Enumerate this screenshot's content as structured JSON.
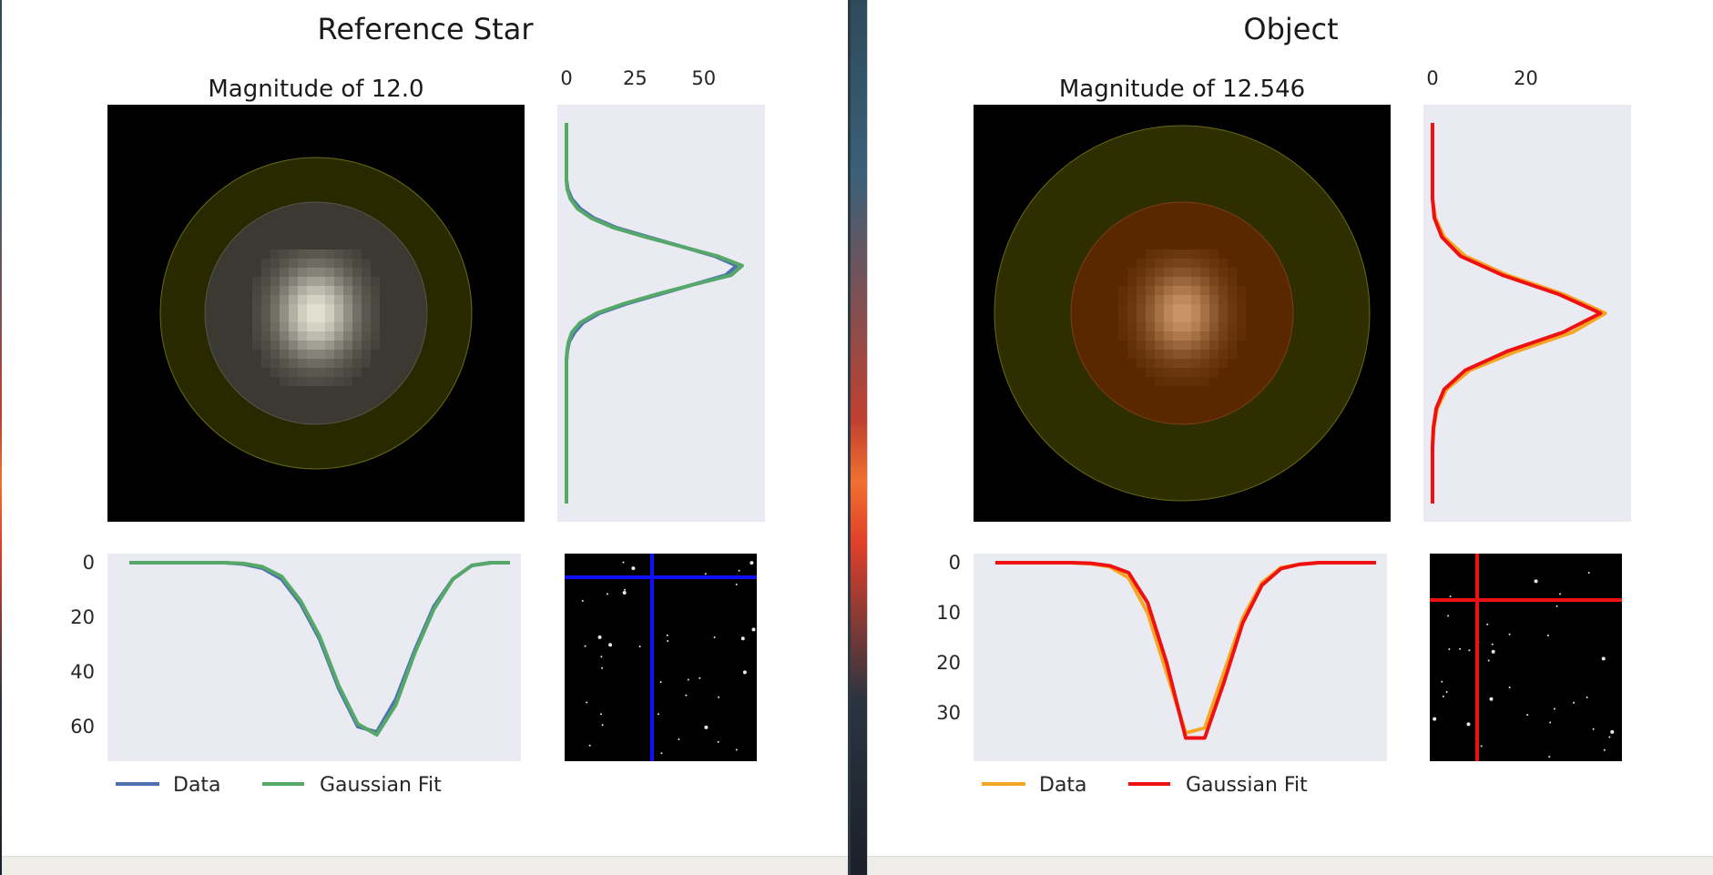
{
  "left": {
    "title": "Reference Star",
    "subtitle": "Magnitude of 12.0",
    "colors": {
      "data": "#4c72b0",
      "fit": "#55a868",
      "crosshair": "#1010ff"
    },
    "side_profile": {
      "x_ticks": [
        "0",
        "25",
        "50"
      ],
      "x_values": [
        0,
        25,
        50
      ],
      "x_max": 68
    },
    "bottom_profile": {
      "y_ticks": [
        "0",
        "20",
        "40",
        "60"
      ],
      "y_values": [
        0,
        20,
        40,
        60
      ],
      "y_max": 66
    },
    "legend": {
      "data_label": "Data",
      "fit_label": "Gaussian Fit"
    }
  },
  "right": {
    "title": "Object",
    "subtitle": "Magnitude of 12.546",
    "colors": {
      "data": "#f5a623",
      "fit": "#ee1111",
      "crosshair": "#ee1111"
    },
    "side_profile": {
      "x_ticks": [
        "0",
        "20"
      ],
      "x_values": [
        0,
        20
      ],
      "x_max": 40
    },
    "bottom_profile": {
      "y_ticks": [
        "0",
        "10",
        "20",
        "30"
      ],
      "y_values": [
        0,
        10,
        20,
        30
      ],
      "y_max": 36
    },
    "legend": {
      "data_label": "Data",
      "fit_label": "Gaussian Fit"
    }
  },
  "chart_data": [
    {
      "type": "line",
      "name": "Reference Star vertical profile",
      "y": [
        0,
        2,
        4,
        6,
        8,
        10,
        12,
        14,
        16,
        18,
        20,
        22,
        24,
        26,
        28,
        30,
        32,
        34,
        36,
        38,
        40,
        42,
        44,
        46,
        48,
        50,
        52,
        54,
        56,
        58,
        60,
        62,
        64,
        66,
        68,
        70,
        72,
        74,
        76,
        78,
        80
      ],
      "series": [
        {
          "name": "Data",
          "values": [
            0,
            0,
            0,
            0,
            0,
            0,
            0,
            0.5,
            2,
            5,
            10,
            18,
            30,
            42,
            54,
            62,
            58,
            46,
            34,
            22,
            12,
            6,
            3,
            1,
            0.3,
            0,
            0,
            0,
            0,
            0,
            0,
            0,
            0,
            0,
            0,
            0,
            0,
            0,
            0,
            0,
            0
          ]
        },
        {
          "name": "Gaussian Fit",
          "values": [
            0,
            0,
            0,
            0,
            0,
            0,
            0,
            0.3,
            1.5,
            4,
            9,
            17,
            29,
            42,
            55,
            64,
            60,
            46,
            33,
            21,
            11,
            5,
            2,
            0.8,
            0.2,
            0,
            0,
            0,
            0,
            0,
            0,
            0,
            0,
            0,
            0,
            0,
            0,
            0,
            0,
            0,
            0
          ]
        }
      ]
    },
    {
      "type": "line",
      "name": "Reference Star horizontal profile",
      "x": [
        0,
        2,
        4,
        6,
        8,
        10,
        12,
        14,
        16,
        18,
        20,
        22,
        24,
        26,
        28,
        30,
        32,
        34,
        36,
        38,
        40
      ],
      "series": [
        {
          "name": "Data",
          "values": [
            0,
            0,
            0,
            0,
            0,
            0,
            0.5,
            2,
            6,
            15,
            28,
            46,
            60,
            62,
            50,
            32,
            16,
            6,
            1,
            0,
            0
          ]
        },
        {
          "name": "Gaussian Fit",
          "values": [
            0,
            0,
            0,
            0,
            0,
            0,
            0.3,
            1.5,
            5,
            14,
            27,
            45,
            59,
            63,
            52,
            33,
            17,
            6,
            1,
            0,
            0
          ]
        }
      ]
    },
    {
      "type": "line",
      "name": "Object vertical profile",
      "y": [
        0,
        2,
        4,
        6,
        8,
        10,
        12,
        14,
        16,
        18,
        20,
        22,
        24,
        26,
        28,
        30,
        32,
        34,
        36,
        38,
        40
      ],
      "series": [
        {
          "name": "Data",
          "values": [
            0,
            0,
            0,
            0,
            0,
            0.6,
            2.5,
            7,
            16,
            28,
            37,
            30,
            18,
            8,
            3,
            1,
            0.3,
            0,
            0,
            0,
            0
          ]
        },
        {
          "name": "Gaussian Fit",
          "values": [
            0,
            0,
            0,
            0,
            0,
            0.4,
            2,
            6,
            15,
            27,
            36,
            28,
            16,
            7,
            2.5,
            0.8,
            0.2,
            0,
            0,
            0,
            0
          ]
        }
      ]
    },
    {
      "type": "line",
      "name": "Object horizontal profile",
      "x": [
        0,
        2,
        4,
        6,
        8,
        10,
        12,
        14,
        16,
        18,
        20,
        22,
        24,
        26,
        28,
        30,
        32,
        34,
        36,
        38,
        40
      ],
      "series": [
        {
          "name": "Data",
          "values": [
            0,
            0,
            0,
            0,
            0,
            0.2,
            0.8,
            3,
            10,
            22,
            34,
            33,
            22,
            11,
            4,
            1,
            0.3,
            0,
            0,
            0,
            0
          ]
        },
        {
          "name": "Gaussian Fit",
          "values": [
            0,
            0,
            0,
            0,
            0,
            0.1,
            0.6,
            2,
            8,
            20,
            35,
            35,
            24,
            12,
            4.5,
            1.2,
            0.3,
            0,
            0,
            0,
            0
          ]
        }
      ]
    }
  ]
}
